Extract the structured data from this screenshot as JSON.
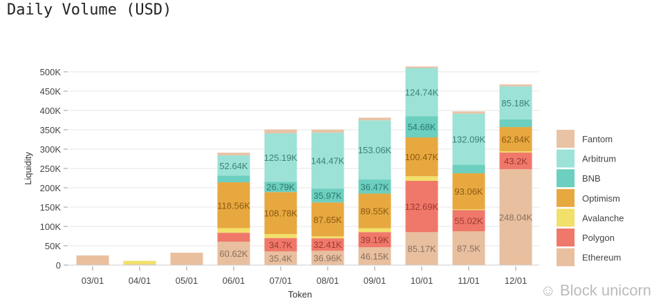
{
  "title": "Daily Volume (USD)",
  "watermark": "Block unicorn",
  "chart_data": {
    "type": "bar",
    "stacked": true,
    "title": "Daily Volume (USD)",
    "xlabel": "Token",
    "ylabel": "Liquidity",
    "ylim": [
      0,
      520000
    ],
    "yticks": [
      0,
      50000,
      100000,
      150000,
      200000,
      250000,
      300000,
      350000,
      400000,
      450000,
      500000
    ],
    "ytick_labels": [
      "0",
      "50K",
      "100K",
      "150K",
      "200K",
      "250K",
      "300K",
      "350K",
      "400K",
      "450K",
      "500K"
    ],
    "grid": true,
    "legend_position": "right",
    "categories": [
      "03/01",
      "04/01",
      "05/01",
      "06/01",
      "07/01",
      "08/01",
      "09/01",
      "10/01",
      "11/01",
      "12/01"
    ],
    "series": [
      {
        "name": "Ethereum",
        "color": "#e8bf9f",
        "values": [
          25000,
          2000,
          32000,
          60620,
          35400,
          36960,
          46150,
          85170,
          87500,
          248040
        ],
        "labels": [
          "",
          "",
          "",
          "60.62K",
          "35.4K",
          "36.96K",
          "46.15K",
          "85.17K",
          "87.5K",
          "248.04K"
        ]
      },
      {
        "name": "Polygon",
        "color": "#f0786a",
        "values": [
          0,
          0,
          0,
          23000,
          34700,
          32410,
          39190,
          132690,
          55020,
          43200
        ],
        "labels": [
          "",
          "",
          "",
          "",
          "34.7K",
          "32.41K",
          "39.19K",
          "132.69K",
          "55.02K",
          "43.2K"
        ]
      },
      {
        "name": "Avalanche",
        "color": "#f1e06a",
        "values": [
          0,
          9000,
          0,
          12000,
          10000,
          5000,
          10000,
          12000,
          2000,
          3000
        ],
        "labels": [
          "",
          "",
          "",
          "",
          "",
          "",
          "",
          "",
          "",
          ""
        ]
      },
      {
        "name": "Optimism",
        "color": "#e8a840",
        "values": [
          0,
          0,
          0,
          118560,
          108780,
          87650,
          89550,
          100470,
          93060,
          62840
        ],
        "labels": [
          "",
          "",
          "",
          "118.56K",
          "108.78K",
          "87.65K",
          "89.55K",
          "100.47K",
          "93.06K",
          "62.84K"
        ]
      },
      {
        "name": "BNB",
        "color": "#6ccfbf",
        "values": [
          0,
          0,
          0,
          17000,
          26790,
          35970,
          36470,
          54680,
          22000,
          20000
        ],
        "labels": [
          "",
          "",
          "",
          "",
          "26.79K",
          "35.97K",
          "36.47K",
          "54.68K",
          "",
          ""
        ]
      },
      {
        "name": "Arbitrum",
        "color": "#9ce2d6",
        "values": [
          0,
          0,
          0,
          52640,
          125190,
          144470,
          153060,
          124740,
          132090,
          85180
        ],
        "labels": [
          "",
          "",
          "",
          "52.64K",
          "125.19K",
          "144.47K",
          "153.06K",
          "124.74K",
          "132.09K",
          "85.18K"
        ]
      },
      {
        "name": "Fantom",
        "color": "#e8c3a6",
        "values": [
          0,
          0,
          0,
          7000,
          10000,
          8000,
          7000,
          4000,
          6000,
          5000
        ],
        "labels": [
          "",
          "",
          "",
          "",
          "",
          "",
          "",
          "",
          "",
          ""
        ]
      }
    ],
    "label_colors": {
      "Ethereum": "#8a7060",
      "Polygon": "#9a3a30",
      "Avalanche": "#8a7a20",
      "Optimism": "#8a5a10",
      "BNB": "#2e7a6e",
      "Arbitrum": "#3f8076",
      "Fantom": "#8a7060"
    }
  }
}
